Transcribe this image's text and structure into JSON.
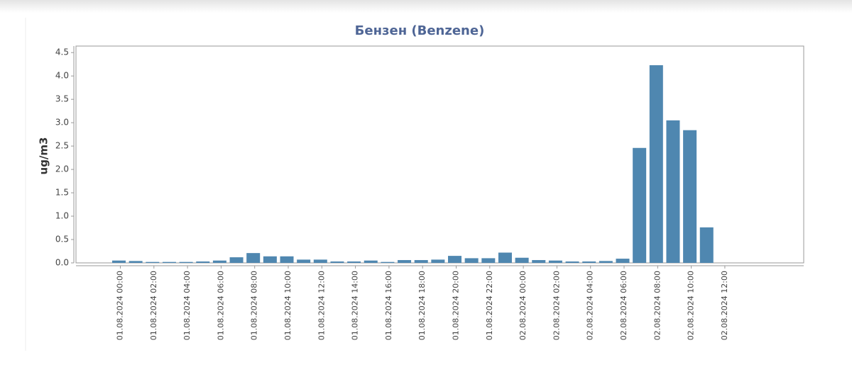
{
  "chart_data": {
    "type": "bar",
    "title": "Бензен (Benzene)",
    "y_label": "ug/m3",
    "categories": [
      "01.08.2024 00:00",
      null,
      "01.08.2024 02:00",
      null,
      "01.08.2024 04:00",
      null,
      "01.08.2024 06:00",
      null,
      "01.08.2024 08:00",
      null,
      "01.08.2024 10:00",
      null,
      "01.08.2024 12:00",
      null,
      "01.08.2024 14:00",
      null,
      "01.08.2024 16:00",
      null,
      "01.08.2024 18:00",
      null,
      "01.08.2024 20:00",
      null,
      "01.08.2024 22:00",
      null,
      "02.08.2024 00:00",
      null,
      "02.08.2024 02:00",
      null,
      "02.08.2024 04:00",
      null,
      "02.08.2024 06:00",
      null,
      "02.08.2024 08:00",
      null,
      "02.08.2024 10:00",
      null,
      "02.08.2024 12:00"
    ],
    "values": [
      0.05,
      0.04,
      0.02,
      0.02,
      0.02,
      0.03,
      0.05,
      0.12,
      0.21,
      0.14,
      0.14,
      0.07,
      0.07,
      0.03,
      0.03,
      0.05,
      0.02,
      0.06,
      0.06,
      0.07,
      0.15,
      0.1,
      0.1,
      0.22,
      0.11,
      0.06,
      0.05,
      0.03,
      0.03,
      0.04,
      0.09,
      2.46,
      4.23,
      3.05,
      2.84,
      0.76,
      null
    ],
    "color": "#4f87b0",
    "ylim": [
      0,
      4.64
    ],
    "yticks": [
      {
        "value": 0,
        "label": "0.0"
      },
      0.5,
      {
        "value": 1,
        "label": "1.0"
      },
      1.5,
      {
        "value": 2,
        "label": "2.0"
      },
      2.5,
      {
        "value": 3,
        "label": "3.0"
      },
      3.5,
      {
        "value": 4,
        "label": "4.0"
      },
      4.5
    ],
    "grid": false
  }
}
